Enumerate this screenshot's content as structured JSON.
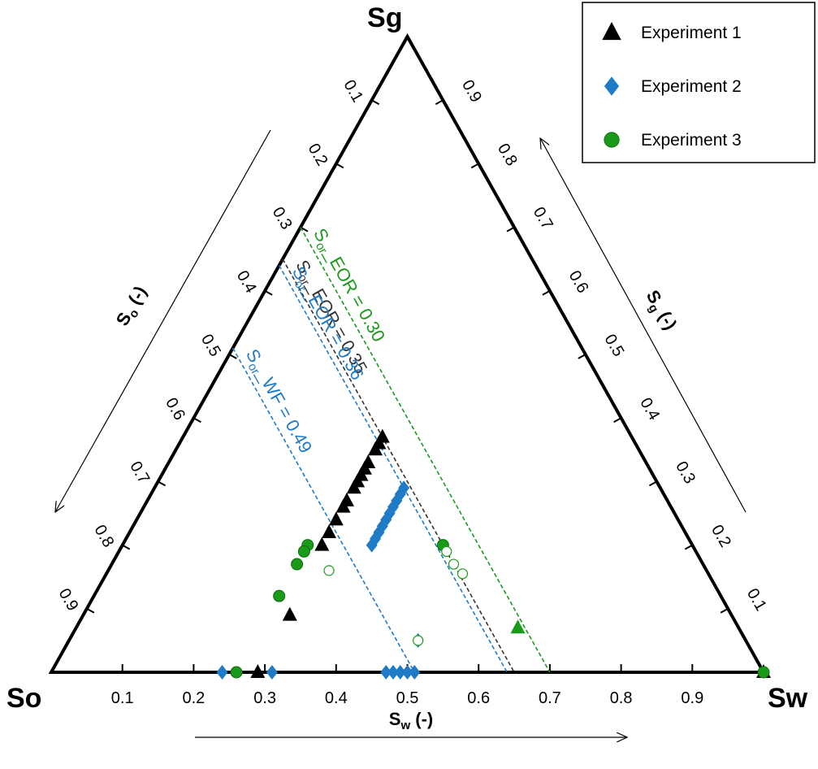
{
  "chart_data": {
    "type": "ternary",
    "vertices": {
      "top": "Sg",
      "left": "So",
      "right": "Sw"
    },
    "axes": {
      "so": {
        "title": [
          "S",
          "o",
          " (-)"
        ],
        "ticks": [
          0.1,
          0.2,
          0.3,
          0.4,
          0.5,
          0.6,
          0.7,
          0.8,
          0.9
        ]
      },
      "sg": {
        "title": [
          "S",
          "g",
          " (-)"
        ],
        "ticks": [
          0.1,
          0.2,
          0.3,
          0.4,
          0.5,
          0.6,
          0.7,
          0.8,
          0.9
        ]
      },
      "sw": {
        "title": [
          "S",
          "w",
          " (-)"
        ],
        "ticks": [
          0.1,
          0.2,
          0.3,
          0.4,
          0.5,
          0.6,
          0.7,
          0.8,
          0.9
        ]
      }
    },
    "reference_lines": [
      {
        "label": [
          "S",
          "or",
          "_EOR = 0.30"
        ],
        "so": 0.3,
        "color": "#1a9a1a"
      },
      {
        "label": [
          "S",
          "or",
          "_EOR = 0.35"
        ],
        "so": 0.35,
        "color": "#333333"
      },
      {
        "label": [
          "S",
          "or",
          "_EOR = 0.36"
        ],
        "so": 0.36,
        "color": "#1f7bc6"
      },
      {
        "label": [
          "S",
          "or",
          "_WF = 0.49"
        ],
        "so": 0.49,
        "color": "#1f7bc6"
      }
    ],
    "series": [
      {
        "name": "Experiment 1",
        "marker": "triangle",
        "color": "#000000",
        "sw": [
          0.28,
          0.28,
          0.28,
          0.28,
          0.28,
          0.28,
          0.28,
          0.28,
          0.28,
          0.28,
          0.28,
          0.28,
          0.28,
          0.29,
          0.29,
          1.0
        ],
        "sg": [
          0.37,
          0.36,
          0.35,
          0.33,
          0.32,
          0.31,
          0.3,
          0.29,
          0.27,
          0.26,
          0.24,
          0.22,
          0.2,
          0.09,
          0.0,
          0.0
        ]
      },
      {
        "name": "Experiment 2",
        "marker": "diamond",
        "color": "#1f7bc6",
        "sw": [
          0.35,
          0.35,
          0.35,
          0.35,
          0.35,
          0.35,
          0.35,
          0.35,
          0.35,
          0.35,
          0.49,
          0.24,
          0.31,
          0.47,
          0.48,
          0.49,
          0.5,
          0.51
        ],
        "sg": [
          0.29,
          0.28,
          0.27,
          0.26,
          0.25,
          0.24,
          0.23,
          0.22,
          0.21,
          0.2,
          0.05,
          0.0,
          0.0,
          0.0,
          0.0,
          0.0,
          0.0,
          0.0
        ]
      },
      {
        "name": "Experiment 3",
        "marker": "circle",
        "color": "#1a9a1a",
        "sw": [
          0.45,
          0.26,
          0.26,
          0.26,
          0.26,
          0.26,
          1.0
        ],
        "sg": [
          0.2,
          0.2,
          0.19,
          0.17,
          0.12,
          0.0,
          0.0
        ],
        "open_sw": [
          0.31,
          0.46,
          0.48,
          0.5,
          0.49
        ],
        "open_sg": [
          0.16,
          0.19,
          0.17,
          0.155,
          0.05
        ],
        "triangle_sw": [
          0.62
        ],
        "triangle_sg": [
          0.07
        ]
      }
    ]
  }
}
